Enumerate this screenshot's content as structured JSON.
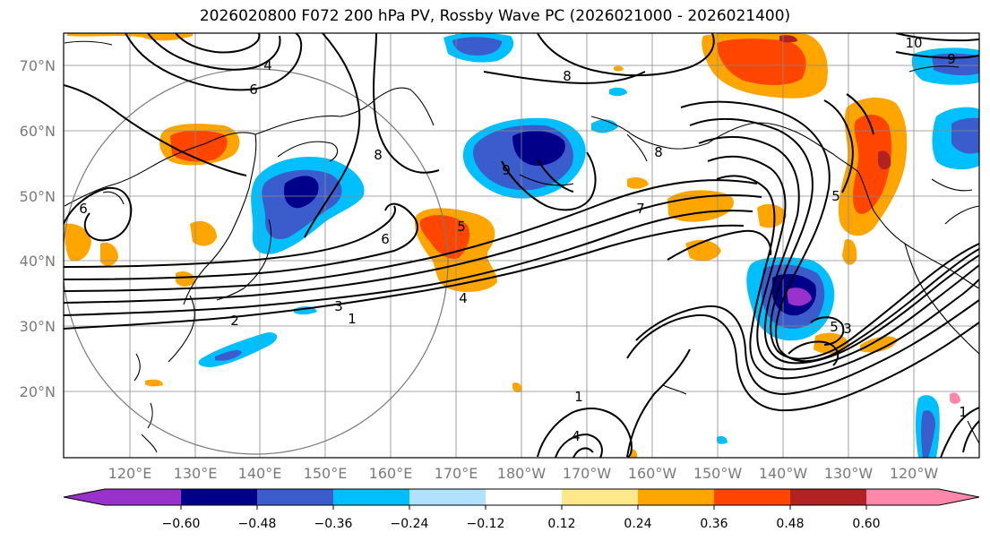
{
  "title": "2026020800 F072 200 hPa PV, Rossby Wave PC (2026021000 - 2026021400)",
  "map": {
    "lat_labels": [
      "70°N",
      "60°N",
      "50°N",
      "40°N",
      "30°N",
      "20°N"
    ],
    "lon_labels": [
      "120°E",
      "130°E",
      "140°E",
      "150°E",
      "160°E",
      "170°E",
      "180°W",
      "170°W",
      "160°W",
      "150°W",
      "140°W",
      "130°W",
      "120°W"
    ],
    "contour_labels": [
      "4",
      "6",
      "8",
      "10",
      "9",
      "8",
      "7",
      "6",
      "5",
      "4",
      "3",
      "2",
      "1",
      "9",
      "8",
      "5",
      "3",
      "1",
      "1",
      "6",
      "4",
      "5"
    ]
  },
  "colorbar": {
    "tick_labels": [
      "−0.60",
      "−0.48",
      "−0.36",
      "−0.24",
      "−0.12",
      "0.12",
      "0.24",
      "0.36",
      "0.48",
      "0.60"
    ],
    "colors": [
      "#9932cc",
      "#00008b",
      "#3a5ccc",
      "#00bfff",
      "#b0e2ff",
      "#ffffff",
      "#ffe88a",
      "#ffa500",
      "#ff4500",
      "#b22222",
      "#ff88aa"
    ],
    "thresholds": [
      -0.6,
      -0.48,
      -0.36,
      -0.24,
      -0.12,
      0.12,
      0.24,
      0.36,
      0.48,
      0.6
    ]
  }
}
